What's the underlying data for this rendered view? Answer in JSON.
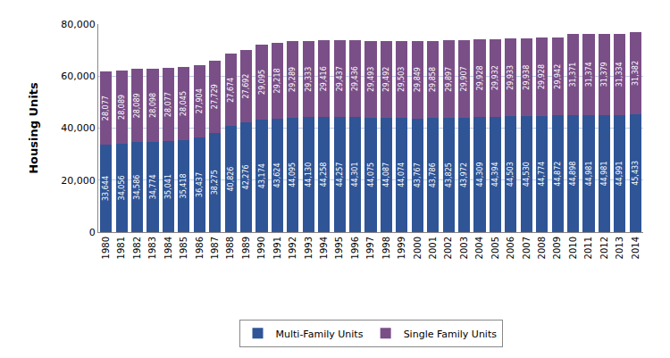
{
  "chart_data": {
    "type": "bar",
    "stacked": true,
    "data_labels": true,
    "grid": true,
    "legend": "bottom",
    "y_label": "Housing Units",
    "categories": [
      "1980",
      "1981",
      "1982",
      "1983",
      "1984",
      "1985",
      "1986",
      "1987",
      "1988",
      "1989",
      "1990",
      "1991",
      "1992",
      "1993",
      "1994",
      "1995",
      "1996",
      "1997",
      "1998",
      "1999",
      "2000",
      "2001",
      "2002",
      "2003",
      "2004",
      "2005",
      "2006",
      "2007",
      "2008",
      "2009",
      "2010",
      "2011",
      "2012",
      "2013",
      "2014"
    ],
    "series": [
      {
        "name": "Multi-Family Units",
        "color": "#2f5597",
        "values": [
          33644,
          34056,
          34586,
          34774,
          35041,
          35418,
          36437,
          38275,
          40826,
          42276,
          43174,
          43624,
          44095,
          44130,
          44258,
          44257,
          44301,
          44075,
          44087,
          44074,
          43767,
          43786,
          43825,
          43972,
          44309,
          44394,
          44503,
          44530,
          44774,
          44872,
          44898,
          44981,
          44981,
          44991,
          45433
        ],
        "value_labels": [
          "33,644",
          "34,056",
          "34,586",
          "34,774",
          "35,041",
          "35,418",
          "36,437",
          "38,275",
          "40,826",
          "42,276",
          "43,174",
          "43,624",
          "44,095",
          "44,130",
          "44,258",
          "44,257",
          "44,301",
          "44,075",
          "44,087",
          "44,074",
          "43,767",
          "43,786",
          "43,825",
          "43,972",
          "44,309",
          "44,394",
          "44,503",
          "44,530",
          "44,774",
          "44,872",
          "44,898",
          "44,981",
          "44,981",
          "44,991",
          "45,433"
        ]
      },
      {
        "name": "Single Family Units",
        "color": "#7a4f88",
        "values": [
          28077,
          28089,
          28089,
          28098,
          28077,
          28045,
          27904,
          27729,
          27674,
          27692,
          29095,
          29218,
          29289,
          29333,
          29416,
          29437,
          29436,
          29493,
          29492,
          29503,
          29849,
          29858,
          29897,
          29907,
          29928,
          29932,
          29933,
          29938,
          29928,
          29942,
          31371,
          31374,
          31379,
          31334,
          31382
        ],
        "value_labels": [
          "28,077",
          "28,089",
          "28,089",
          "28,098",
          "28,077",
          "28,045",
          "27,904",
          "27,729",
          "27,674",
          "27,692",
          "29,095",
          "29,218",
          "29,289",
          "29,333",
          "29,416",
          "29,437",
          "29,436",
          "29,493",
          "29,492",
          "29,503",
          "29,849",
          "29,858",
          "29,897",
          "29,907",
          "29,928",
          "29,932",
          "29,933",
          "29,938",
          "29,928",
          "29,942",
          "31,371",
          "31,374",
          "31,379",
          "31,334",
          "31,382"
        ]
      }
    ],
    "ylim": [
      0,
      80000
    ],
    "yticks": [
      0,
      {
        "value": 20000,
        "label": "20,000"
      },
      {
        "value": 40000,
        "label": "40,000"
      },
      {
        "value": 60000,
        "label": "60,000"
      },
      {
        "value": 80000,
        "label": "80,000"
      }
    ]
  }
}
